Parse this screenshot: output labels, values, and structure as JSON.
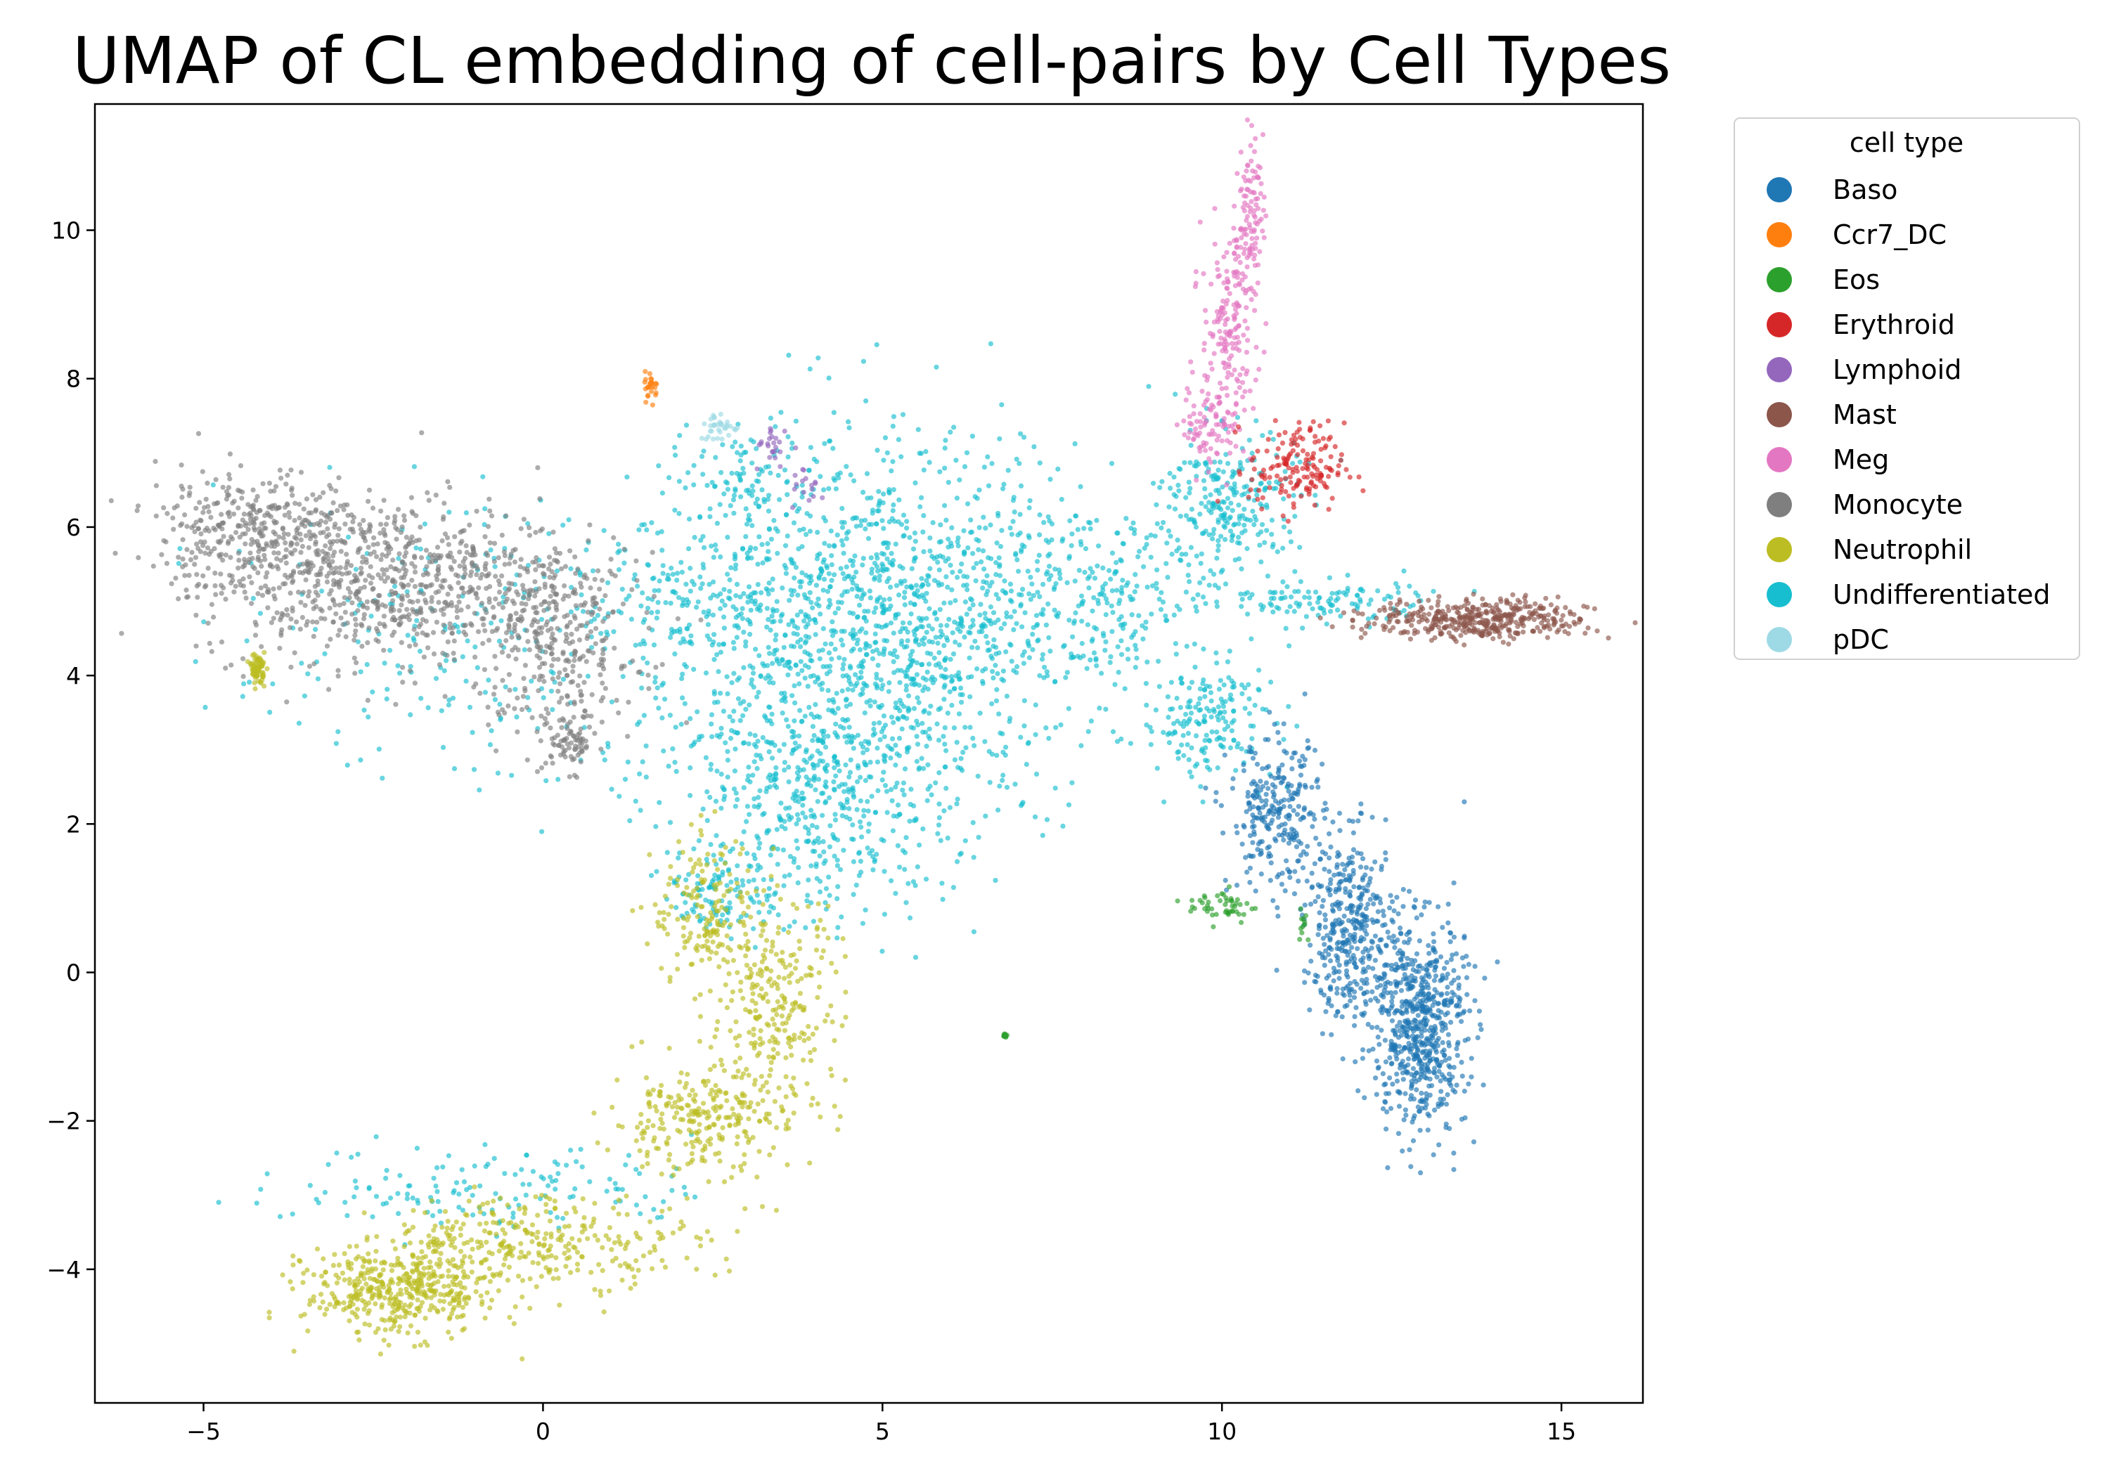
{
  "chart_data": {
    "type": "scatter",
    "title": "UMAP of CL embedding of cell-pairs  by Cell Types",
    "xlabel": "",
    "ylabel": "",
    "xlim": [
      -6.6,
      16.2
    ],
    "ylim": [
      -5.8,
      11.7
    ],
    "x_ticks": [
      -5,
      0,
      5,
      10,
      15
    ],
    "y_ticks": [
      -4,
      -2,
      0,
      2,
      4,
      6,
      8,
      10
    ],
    "x_tick_labels": [
      "−5",
      "0",
      "5",
      "10",
      "15"
    ],
    "y_tick_labels": [
      "−4",
      "−2",
      "0",
      "2",
      "4",
      "6",
      "8",
      "10"
    ],
    "grid": false,
    "legend": {
      "title": "cell type",
      "placement": "outside right, top"
    },
    "series": [
      {
        "name": "Undifferentiated",
        "color": "#17becf",
        "regions": [
          {
            "center": [
              5.4,
              4.6
            ],
            "spread": [
              1.2,
              1.3
            ],
            "weight": 0.28
          },
          {
            "center": [
              2.9,
              5.0
            ],
            "spread": [
              1.3,
              0.55
            ],
            "weight": 0.1
          },
          {
            "center": [
              4.2,
              2.0
            ],
            "spread": [
              0.9,
              0.7
            ],
            "weight": 0.08
          },
          {
            "center": [
              8.0,
              5.1
            ],
            "spread": [
              1.1,
              0.6
            ],
            "weight": 0.08
          },
          {
            "center": [
              10.1,
              6.3
            ],
            "spread": [
              0.5,
              0.5
            ],
            "weight": 0.07
          },
          {
            "center": [
              11.5,
              5.0
            ],
            "spread": [
              0.8,
              0.15
            ],
            "weight": 0.03
          },
          {
            "center": [
              9.8,
              3.4
            ],
            "spread": [
              0.5,
              0.4
            ],
            "weight": 0.05
          },
          {
            "center": [
              -1.5,
              4.5
            ],
            "spread": [
              1.6,
              0.9
            ],
            "weight": 0.06
          },
          {
            "center": [
              -0.7,
              -2.9
            ],
            "spread": [
              1.5,
              0.3
            ],
            "weight": 0.04
          },
          {
            "center": [
              2.6,
              1.1
            ],
            "spread": [
              0.4,
              0.3
            ],
            "weight": 0.03
          },
          {
            "center": [
              3.0,
              6.6
            ],
            "spread": [
              0.6,
              0.4
            ],
            "weight": 0.03
          },
          {
            "center": [
              3.3,
              3.1
            ],
            "spread": [
              1.0,
              0.8
            ],
            "weight": 0.08
          }
        ],
        "points": 3400
      },
      {
        "name": "Monocyte",
        "color": "#7f7f7f",
        "regions": [
          {
            "center": [
              -2.3,
              5.3
            ],
            "spread": [
              1.4,
              0.55
            ],
            "weight": 0.55
          },
          {
            "center": [
              -4.3,
              6.0
            ],
            "spread": [
              0.7,
              0.4
            ],
            "weight": 0.2
          },
          {
            "center": [
              0.2,
              4.4
            ],
            "spread": [
              0.6,
              0.6
            ],
            "weight": 0.2
          },
          {
            "center": [
              0.4,
              3.1
            ],
            "spread": [
              0.2,
              0.2
            ],
            "weight": 0.05
          }
        ],
        "points": 1500
      },
      {
        "name": "Neutrophil",
        "color": "#bcbd22",
        "regions": [
          {
            "center": [
              -2.1,
              -4.3
            ],
            "spread": [
              0.7,
              0.3
            ],
            "weight": 0.3
          },
          {
            "center": [
              0.0,
              -3.6
            ],
            "spread": [
              1.2,
              0.3
            ],
            "weight": 0.2
          },
          {
            "center": [
              2.2,
              -2.0
            ],
            "spread": [
              0.6,
              0.35
            ],
            "weight": 0.15
          },
          {
            "center": [
              3.4,
              -0.5
            ],
            "spread": [
              0.5,
              0.8
            ],
            "weight": 0.2
          },
          {
            "center": [
              2.4,
              0.8
            ],
            "spread": [
              0.4,
              0.5
            ],
            "weight": 0.1
          },
          {
            "center": [
              -4.2,
              4.1
            ],
            "spread": [
              0.05,
              0.1
            ],
            "weight": 0.05
          }
        ],
        "points": 1500
      },
      {
        "name": "Baso",
        "color": "#1f77b4",
        "regions": [
          {
            "center": [
              10.8,
              2.1
            ],
            "spread": [
              0.35,
              0.5
            ],
            "weight": 0.2
          },
          {
            "center": [
              11.9,
              0.6
            ],
            "spread": [
              0.35,
              0.6
            ],
            "weight": 0.3
          },
          {
            "center": [
              12.9,
              -0.7
            ],
            "spread": [
              0.35,
              0.7
            ],
            "weight": 0.5
          }
        ],
        "points": 1300
      },
      {
        "name": "Meg",
        "color": "#e377c2",
        "regions": [
          {
            "center": [
              10.1,
              8.5
            ],
            "spread": [
              0.2,
              0.7
            ],
            "weight": 0.5
          },
          {
            "center": [
              10.4,
              10.2
            ],
            "spread": [
              0.1,
              0.5
            ],
            "weight": 0.3
          },
          {
            "center": [
              9.8,
              7.4
            ],
            "spread": [
              0.2,
              0.3
            ],
            "weight": 0.2
          }
        ],
        "points": 360
      },
      {
        "name": "Mast",
        "color": "#8c564b",
        "regions": [
          {
            "center": [
              13.8,
              4.75
            ],
            "spread": [
              0.8,
              0.14
            ],
            "weight": 1.0
          }
        ],
        "points": 420
      },
      {
        "name": "Erythroid",
        "color": "#d62728",
        "regions": [
          {
            "center": [
              11.1,
              6.8
            ],
            "spread": [
              0.35,
              0.3
            ],
            "weight": 1.0
          }
        ],
        "points": 160
      },
      {
        "name": "Eos",
        "color": "#2ca02c",
        "regions": [
          {
            "center": [
              10.0,
              0.9
            ],
            "spread": [
              0.25,
              0.12
            ],
            "weight": 0.7
          },
          {
            "center": [
              11.2,
              0.7
            ],
            "spread": [
              0.05,
              0.15
            ],
            "weight": 0.15
          },
          {
            "center": [
              6.8,
              -0.85
            ],
            "spread": [
              0.02,
              0.02
            ],
            "weight": 0.15
          }
        ],
        "points": 70
      },
      {
        "name": "Ccr7_DC",
        "color": "#ff7f0e",
        "regions": [
          {
            "center": [
              1.6,
              7.9
            ],
            "spread": [
              0.05,
              0.1
            ],
            "weight": 1.0
          }
        ],
        "points": 25
      },
      {
        "name": "Lymphoid",
        "color": "#9467bd",
        "regions": [
          {
            "center": [
              3.4,
              7.1
            ],
            "spread": [
              0.15,
              0.15
            ],
            "weight": 0.6
          },
          {
            "center": [
              3.9,
              6.5
            ],
            "spread": [
              0.12,
              0.15
            ],
            "weight": 0.4
          }
        ],
        "points": 40
      },
      {
        "name": "pDC",
        "color": "#9edae5",
        "regions": [
          {
            "center": [
              2.6,
              7.35
            ],
            "spread": [
              0.15,
              0.1
            ],
            "weight": 1.0
          }
        ],
        "points": 35
      }
    ]
  },
  "legend_items": [
    {
      "label": "Baso",
      "color": "#1f77b4"
    },
    {
      "label": "Ccr7_DC",
      "color": "#ff7f0e"
    },
    {
      "label": "Eos",
      "color": "#2ca02c"
    },
    {
      "label": "Erythroid",
      "color": "#d62728"
    },
    {
      "label": "Lymphoid",
      "color": "#9467bd"
    },
    {
      "label": "Mast",
      "color": "#8c564b"
    },
    {
      "label": "Meg",
      "color": "#e377c2"
    },
    {
      "label": "Monocyte",
      "color": "#7f7f7f"
    },
    {
      "label": "Neutrophil",
      "color": "#bcbd22"
    },
    {
      "label": "Undifferentiated",
      "color": "#17becf"
    },
    {
      "label": "pDC",
      "color": "#9edae5"
    }
  ]
}
